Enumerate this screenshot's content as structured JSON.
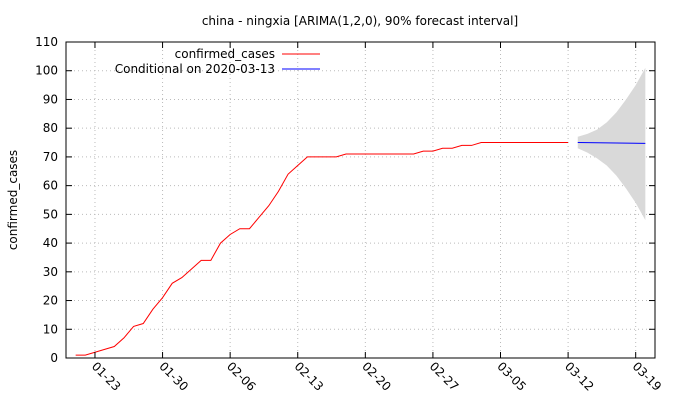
{
  "chart_data": {
    "type": "line",
    "title": "china - ningxia [ARIMA(1,2,0), 90% forecast interval]",
    "xlabel": "",
    "ylabel": "confirmed_cases",
    "ylim": [
      0,
      110
    ],
    "xlim": [
      "2020-01-20",
      "2020-03-21"
    ],
    "y_ticks": [
      "0",
      "10",
      "20",
      "30",
      "40",
      "50",
      "60",
      "70",
      "80",
      "90",
      "100",
      "110"
    ],
    "x_ticks": [
      {
        "date": "2020-01-23",
        "label": "01-23"
      },
      {
        "date": "2020-01-30",
        "label": "01-30"
      },
      {
        "date": "2020-02-06",
        "label": "02-06"
      },
      {
        "date": "2020-02-13",
        "label": "02-13"
      },
      {
        "date": "2020-02-20",
        "label": "02-20"
      },
      {
        "date": "2020-02-27",
        "label": "02-27"
      },
      {
        "date": "2020-03-05",
        "label": "03-05"
      },
      {
        "date": "2020-03-12",
        "label": "03-12"
      },
      {
        "date": "2020-03-19",
        "label": "03-19"
      }
    ],
    "grid": true,
    "legend_position": "top-center",
    "series": [
      {
        "name": "confirmed_cases",
        "color": "#ff0000",
        "points": [
          {
            "x": "2020-01-21",
            "y": 1
          },
          {
            "x": "2020-01-22",
            "y": 1
          },
          {
            "x": "2020-01-23",
            "y": 2
          },
          {
            "x": "2020-01-24",
            "y": 3
          },
          {
            "x": "2020-01-25",
            "y": 4
          },
          {
            "x": "2020-01-26",
            "y": 7
          },
          {
            "x": "2020-01-27",
            "y": 11
          },
          {
            "x": "2020-01-28",
            "y": 12
          },
          {
            "x": "2020-01-29",
            "y": 17
          },
          {
            "x": "2020-01-30",
            "y": 21
          },
          {
            "x": "2020-01-31",
            "y": 26
          },
          {
            "x": "2020-02-01",
            "y": 28
          },
          {
            "x": "2020-02-02",
            "y": 31
          },
          {
            "x": "2020-02-03",
            "y": 34
          },
          {
            "x": "2020-02-04",
            "y": 34
          },
          {
            "x": "2020-02-05",
            "y": 40
          },
          {
            "x": "2020-02-06",
            "y": 43
          },
          {
            "x": "2020-02-07",
            "y": 45
          },
          {
            "x": "2020-02-08",
            "y": 45
          },
          {
            "x": "2020-02-09",
            "y": 49
          },
          {
            "x": "2020-02-10",
            "y": 53
          },
          {
            "x": "2020-02-11",
            "y": 58
          },
          {
            "x": "2020-02-12",
            "y": 64
          },
          {
            "x": "2020-02-13",
            "y": 67
          },
          {
            "x": "2020-02-14",
            "y": 70
          },
          {
            "x": "2020-02-15",
            "y": 70
          },
          {
            "x": "2020-02-16",
            "y": 70
          },
          {
            "x": "2020-02-17",
            "y": 70
          },
          {
            "x": "2020-02-18",
            "y": 71
          },
          {
            "x": "2020-02-19",
            "y": 71
          },
          {
            "x": "2020-02-20",
            "y": 71
          },
          {
            "x": "2020-02-21",
            "y": 71
          },
          {
            "x": "2020-02-22",
            "y": 71
          },
          {
            "x": "2020-02-23",
            "y": 71
          },
          {
            "x": "2020-02-24",
            "y": 71
          },
          {
            "x": "2020-02-25",
            "y": 71
          },
          {
            "x": "2020-02-26",
            "y": 72
          },
          {
            "x": "2020-02-27",
            "y": 72
          },
          {
            "x": "2020-02-28",
            "y": 73
          },
          {
            "x": "2020-02-29",
            "y": 73
          },
          {
            "x": "2020-03-01",
            "y": 74
          },
          {
            "x": "2020-03-02",
            "y": 74
          },
          {
            "x": "2020-03-03",
            "y": 75
          },
          {
            "x": "2020-03-04",
            "y": 75
          },
          {
            "x": "2020-03-05",
            "y": 75
          },
          {
            "x": "2020-03-06",
            "y": 75
          },
          {
            "x": "2020-03-07",
            "y": 75
          },
          {
            "x": "2020-03-08",
            "y": 75
          },
          {
            "x": "2020-03-09",
            "y": 75
          },
          {
            "x": "2020-03-10",
            "y": 75
          },
          {
            "x": "2020-03-11",
            "y": 75
          },
          {
            "x": "2020-03-12",
            "y": 75
          }
        ]
      },
      {
        "name": "Conditional on 2020-03-13",
        "color": "#0000ff",
        "points": [
          {
            "x": "2020-03-13",
            "y": 75
          },
          {
            "x": "2020-03-20",
            "y": 74.7
          }
        ]
      }
    ],
    "forecast_interval": {
      "color": "#d9d9d9",
      "points": [
        {
          "x": "2020-03-13",
          "lower": 73,
          "upper": 77
        },
        {
          "x": "2020-03-14",
          "lower": 71.5,
          "upper": 78
        },
        {
          "x": "2020-03-15",
          "lower": 69.5,
          "upper": 79.5
        },
        {
          "x": "2020-03-16",
          "lower": 67,
          "upper": 82
        },
        {
          "x": "2020-03-17",
          "lower": 63.5,
          "upper": 85.5
        },
        {
          "x": "2020-03-18",
          "lower": 59,
          "upper": 90
        },
        {
          "x": "2020-03-19",
          "lower": 54,
          "upper": 95
        },
        {
          "x": "2020-03-20",
          "lower": 48,
          "upper": 101
        }
      ]
    }
  }
}
